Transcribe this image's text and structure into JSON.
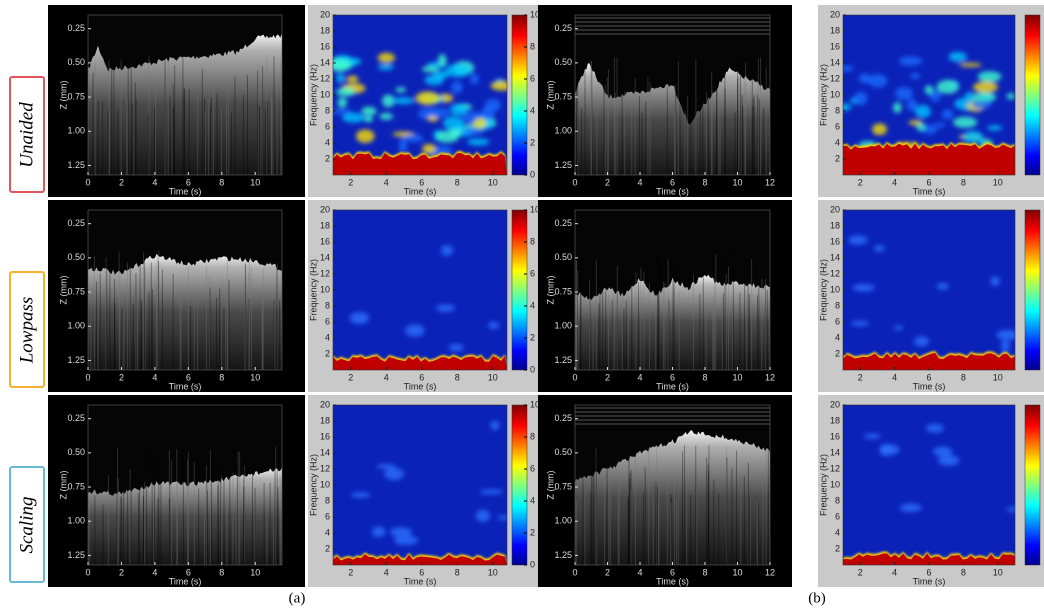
{
  "row_labels": [
    "Unaided",
    "Lowpass",
    "Scaling"
  ],
  "captions": [
    "(a)",
    "(b)"
  ],
  "axes": {
    "mmode_a": {
      "xlabel": "Time (s)",
      "ylabel": "Z (mm)",
      "xlim": [
        0,
        11.6
      ],
      "xticks": [
        0,
        2,
        4,
        6,
        8,
        10
      ],
      "ylim": [
        1.32,
        0.15
      ],
      "yticks": [
        "0.25",
        "0.50",
        "0.75",
        "1.00",
        "1.25"
      ]
    },
    "spec_a": {
      "xlabel": "Time (s)",
      "ylabel": "Frequency (Hz)",
      "xlim": [
        1,
        10.8
      ],
      "xticks": [
        2,
        4,
        6,
        8,
        10
      ],
      "ylim": [
        0,
        20
      ],
      "yticks": [
        2,
        4,
        6,
        8,
        10,
        12,
        14,
        16,
        18,
        20
      ],
      "clim": [
        0,
        10
      ],
      "cticks": [
        0,
        2,
        4,
        6,
        8,
        10
      ]
    },
    "mmode_b": {
      "xlabel": "Time (s)",
      "ylabel": "Z (mm)",
      "xlim": [
        0,
        12
      ],
      "xticks": [
        0,
        2,
        4,
        6,
        8,
        10,
        12
      ],
      "ylim": [
        1.32,
        0.15
      ],
      "yticks": [
        "0.25",
        "0.50",
        "0.75",
        "1.00",
        "1.25"
      ]
    },
    "spec_b": {
      "xlabel": "Time (s)",
      "ylabel": "Frequency (Hz)",
      "xlim": [
        1,
        11
      ],
      "xticks": [
        2,
        4,
        6,
        8,
        10
      ],
      "ylim": [
        0,
        20
      ],
      "yticks": [
        2,
        4,
        6,
        8,
        10,
        12,
        14,
        16,
        18,
        20
      ]
    }
  }
}
